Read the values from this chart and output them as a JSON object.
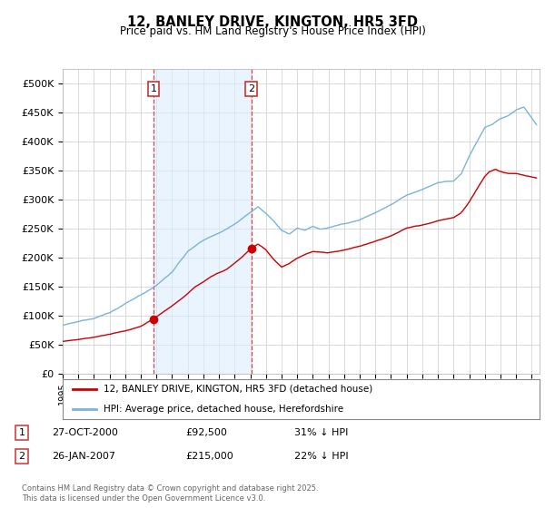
{
  "title": "12, BANLEY DRIVE, KINGTON, HR5 3FD",
  "subtitle": "Price paid vs. HM Land Registry's House Price Index (HPI)",
  "ylabel_ticks": [
    "£0",
    "£50K",
    "£100K",
    "£150K",
    "£200K",
    "£250K",
    "£300K",
    "£350K",
    "£400K",
    "£450K",
    "£500K"
  ],
  "ytick_vals": [
    0,
    50000,
    100000,
    150000,
    200000,
    250000,
    300000,
    350000,
    400000,
    450000,
    500000
  ],
  "ylim": [
    0,
    525000
  ],
  "xlim_start": 1995.0,
  "xlim_end": 2025.5,
  "hpi_color": "#7ab4d8",
  "price_color": "#cc0000",
  "sale1_date": "27-OCT-2000",
  "sale1_price": 92500,
  "sale1_pct": "31%",
  "sale2_date": "26-JAN-2007",
  "sale2_price": 215000,
  "sale2_pct": "22%",
  "sale1_x": 2000.82,
  "sale2_x": 2007.07,
  "legend_label1": "12, BANLEY DRIVE, KINGTON, HR5 3FD (detached house)",
  "legend_label2": "HPI: Average price, detached house, Herefordshire",
  "footer": "Contains HM Land Registry data © Crown copyright and database right 2025.\nThis data is licensed under the Open Government Licence v3.0.",
  "background_color": "#ffffff",
  "plot_bg_color": "#ffffff",
  "grid_color": "#cccccc",
  "span_color": "#ddeeff"
}
